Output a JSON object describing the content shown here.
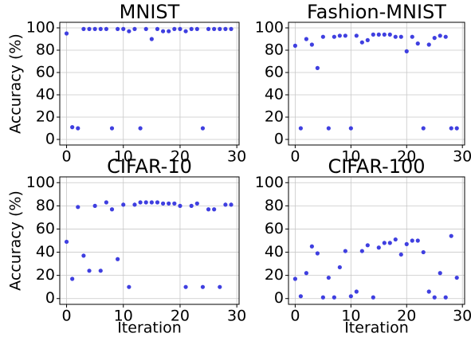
{
  "chart_data": [
    {
      "type": "scatter",
      "title": "MNIST",
      "ylabel": "Accuracy (%)",
      "color": "#3f3fe0",
      "x": [
        0,
        1,
        2,
        3,
        4,
        5,
        6,
        7,
        8,
        9,
        10,
        11,
        12,
        13,
        14,
        15,
        16,
        17,
        18,
        19,
        20,
        21,
        22,
        23,
        24,
        25,
        26,
        27,
        28,
        29
      ],
      "values": [
        95,
        11,
        10,
        99,
        99,
        99,
        99,
        99,
        10,
        99,
        99,
        97,
        99,
        10,
        99,
        90,
        99,
        97,
        97,
        99,
        99,
        97,
        99,
        99,
        10,
        99,
        99,
        99,
        99,
        99
      ],
      "xlim": [
        -1.2,
        30.4
      ],
      "ylim": [
        -5,
        105
      ],
      "xticks": [
        0,
        10,
        20,
        30
      ],
      "yticks": [
        0,
        20,
        40,
        60,
        80,
        100
      ],
      "grid": true
    },
    {
      "type": "scatter",
      "title": "Fashion-MNIST",
      "color": "#3f3fe0",
      "x": [
        0,
        1,
        2,
        3,
        4,
        5,
        6,
        7,
        8,
        9,
        10,
        11,
        12,
        13,
        14,
        15,
        16,
        17,
        18,
        19,
        20,
        21,
        22,
        23,
        24,
        25,
        26,
        27,
        28,
        29
      ],
      "values": [
        84,
        10,
        90,
        85,
        64,
        92,
        10,
        92,
        93,
        93,
        10,
        93,
        87,
        89,
        94,
        94,
        94,
        94,
        92,
        92,
        79,
        92,
        86,
        10,
        85,
        91,
        93,
        92,
        10,
        10
      ],
      "xlim": [
        -1.2,
        30.4
      ],
      "ylim": [
        -5,
        105
      ],
      "xticks": [
        0,
        10,
        20,
        30
      ],
      "yticks": [
        0,
        20,
        40,
        60,
        80,
        100
      ],
      "grid": true
    },
    {
      "type": "scatter",
      "title": "CIFAR-10",
      "ylabel": "Accuracy (%)",
      "xlabel": "Iteration",
      "color": "#3f3fe0",
      "x": [
        0,
        1,
        2,
        3,
        4,
        5,
        6,
        7,
        8,
        9,
        10,
        11,
        12,
        13,
        14,
        15,
        16,
        17,
        18,
        19,
        20,
        21,
        22,
        23,
        24,
        25,
        26,
        27,
        28,
        29
      ],
      "values": [
        49,
        17,
        79,
        37,
        24,
        80,
        24,
        83,
        77,
        34,
        81,
        10,
        81,
        83,
        83,
        83,
        83,
        82,
        82,
        82,
        80,
        10,
        80,
        82,
        10,
        77,
        77,
        10,
        81,
        81
      ],
      "xlim": [
        -1.2,
        30.4
      ],
      "ylim": [
        -5,
        105
      ],
      "xticks": [
        0,
        10,
        20,
        30
      ],
      "yticks": [
        0,
        20,
        40,
        60,
        80,
        100
      ],
      "grid": true
    },
    {
      "type": "scatter",
      "title": "CIFAR-100",
      "xlabel": "Iteration",
      "color": "#3f3fe0",
      "x": [
        0,
        1,
        2,
        3,
        4,
        5,
        6,
        7,
        8,
        9,
        10,
        11,
        12,
        13,
        14,
        15,
        16,
        17,
        18,
        19,
        20,
        21,
        22,
        23,
        24,
        25,
        26,
        27,
        28,
        29
      ],
      "values": [
        17,
        2,
        22,
        45,
        39,
        1,
        18,
        1,
        27,
        41,
        2,
        6,
        41,
        46,
        1,
        44,
        48,
        48,
        51,
        38,
        47,
        50,
        50,
        40,
        6,
        1,
        22,
        1,
        54,
        18
      ],
      "xlim": [
        -1.2,
        30.4
      ],
      "ylim": [
        -5,
        105
      ],
      "xticks": [
        0,
        10,
        20,
        30
      ],
      "yticks": [
        0,
        20,
        40,
        60,
        80,
        100
      ],
      "grid": true
    }
  ]
}
